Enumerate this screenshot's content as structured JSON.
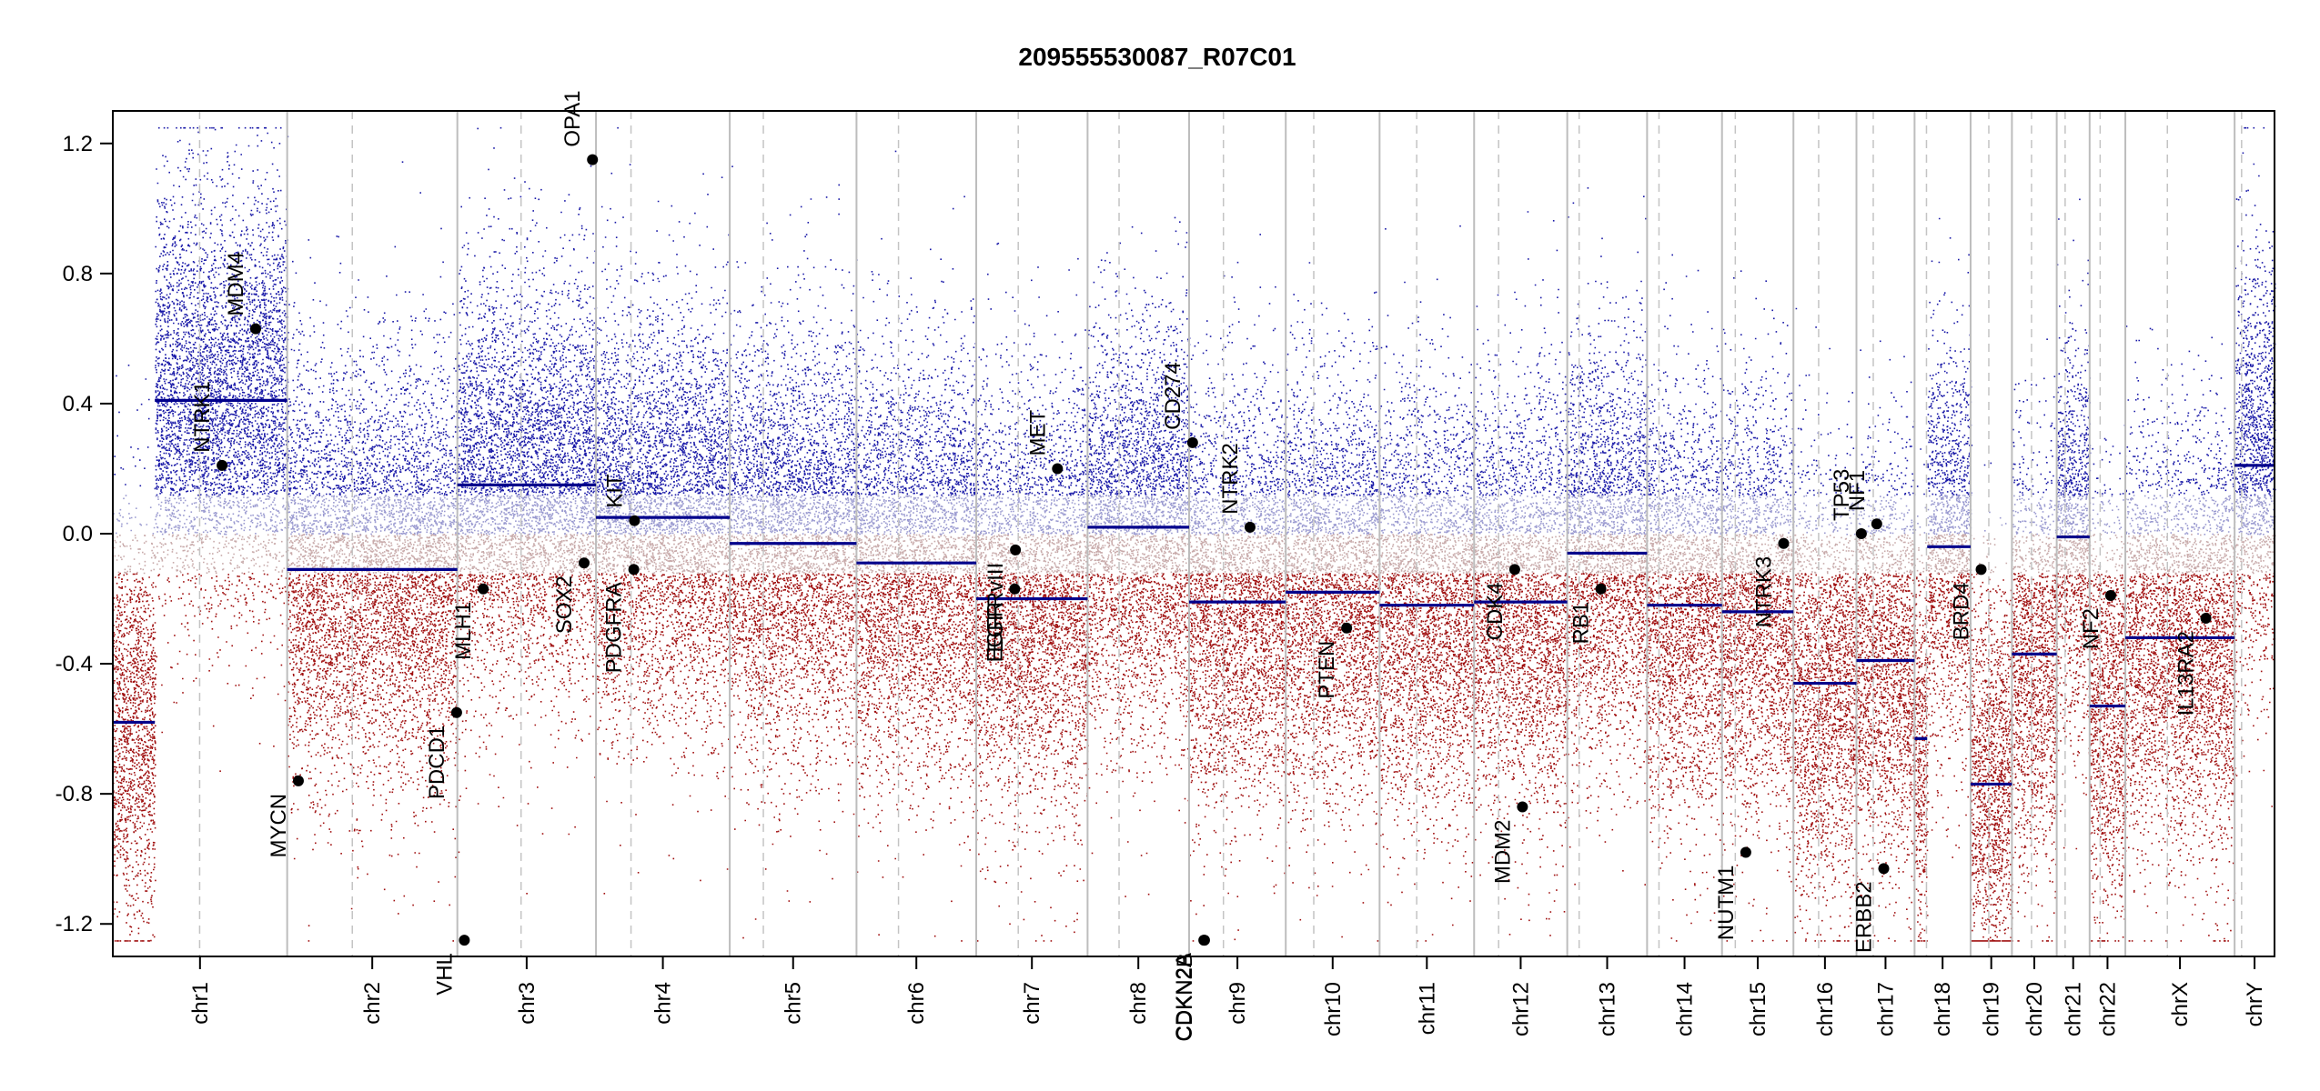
{
  "chart_data": {
    "type": "scatter",
    "title": "209555530087_R07C01",
    "xlabel": "",
    "ylabel": "",
    "ylim": [
      -1.3,
      1.3
    ],
    "yticks": [
      1.2,
      0.8,
      0.4,
      0.0,
      -0.4,
      -0.8,
      -1.2
    ],
    "ytick_labels": [
      "1.2",
      "0.8",
      "0.4",
      "0.0",
      "-0.4",
      "-0.8",
      "-1.2"
    ],
    "grid": false,
    "colors": {
      "gain": "#1a1aa8",
      "loss": "#a01010",
      "neutral": "#b8b8b8",
      "segment": "#00008b",
      "divider": "#bdbdbd"
    },
    "chromosomes": [
      {
        "name": "chr1",
        "size": 249,
        "centromere": 124
      },
      {
        "name": "chr2",
        "size": 243,
        "centromere": 93
      },
      {
        "name": "chr3",
        "size": 198,
        "centromere": 91
      },
      {
        "name": "chr4",
        "size": 191,
        "centromere": 50
      },
      {
        "name": "chr5",
        "size": 181,
        "centromere": 48
      },
      {
        "name": "chr6",
        "size": 171,
        "centromere": 60
      },
      {
        "name": "chr7",
        "size": 159,
        "centromere": 60
      },
      {
        "name": "chr8",
        "size": 145,
        "centromere": 45
      },
      {
        "name": "chr9",
        "size": 138,
        "centromere": 49
      },
      {
        "name": "chr10",
        "size": 134,
        "centromere": 40
      },
      {
        "name": "chr11",
        "size": 135,
        "centromere": 53
      },
      {
        "name": "chr12",
        "size": 133,
        "centromere": 35
      },
      {
        "name": "chr13",
        "size": 114,
        "centromere": 17
      },
      {
        "name": "chr14",
        "size": 107,
        "centromere": 17
      },
      {
        "name": "chr15",
        "size": 102,
        "centromere": 19
      },
      {
        "name": "chr16",
        "size": 90,
        "centromere": 36
      },
      {
        "name": "chr17",
        "size": 83,
        "centromere": 24
      },
      {
        "name": "chr18",
        "size": 80,
        "centromere": 17
      },
      {
        "name": "chr19",
        "size": 59,
        "centromere": 26
      },
      {
        "name": "chr20",
        "size": 64,
        "centromere": 28
      },
      {
        "name": "chr21",
        "size": 47,
        "centromere": 12
      },
      {
        "name": "chr22",
        "size": 51,
        "centromere": 15
      },
      {
        "name": "chrX",
        "size": 156,
        "centromere": 60
      },
      {
        "name": "chrY",
        "size": 57,
        "centromere": 10
      }
    ],
    "segments": [
      {
        "chr": "chr1",
        "start": 0,
        "end": 60,
        "value": -0.58
      },
      {
        "chr": "chr1",
        "start": 60,
        "end": 249,
        "value": 0.41
      },
      {
        "chr": "chr2",
        "start": 0,
        "end": 243,
        "value": -0.11
      },
      {
        "chr": "chr3",
        "start": 0,
        "end": 198,
        "value": 0.15
      },
      {
        "chr": "chr4",
        "start": 0,
        "end": 191,
        "value": 0.05
      },
      {
        "chr": "chr5",
        "start": 0,
        "end": 181,
        "value": -0.03
      },
      {
        "chr": "chr6",
        "start": 0,
        "end": 171,
        "value": -0.09
      },
      {
        "chr": "chr7",
        "start": 0,
        "end": 159,
        "value": -0.2
      },
      {
        "chr": "chr8",
        "start": 0,
        "end": 145,
        "value": 0.02
      },
      {
        "chr": "chr9",
        "start": 0,
        "end": 138,
        "value": -0.21
      },
      {
        "chr": "chr10",
        "start": 0,
        "end": 134,
        "value": -0.18
      },
      {
        "chr": "chr11",
        "start": 0,
        "end": 135,
        "value": -0.22
      },
      {
        "chr": "chr12",
        "start": 0,
        "end": 133,
        "value": -0.21
      },
      {
        "chr": "chr13",
        "start": 0,
        "end": 114,
        "value": -0.06
      },
      {
        "chr": "chr14",
        "start": 0,
        "end": 107,
        "value": -0.22
      },
      {
        "chr": "chr15",
        "start": 0,
        "end": 102,
        "value": -0.24
      },
      {
        "chr": "chr16",
        "start": 0,
        "end": 90,
        "value": -0.46
      },
      {
        "chr": "chr17",
        "start": 0,
        "end": 83,
        "value": -0.39
      },
      {
        "chr": "chr18",
        "start": 0,
        "end": 18,
        "value": -0.63
      },
      {
        "chr": "chr18",
        "start": 18,
        "end": 80,
        "value": -0.04
      },
      {
        "chr": "chr19",
        "start": 0,
        "end": 59,
        "value": -0.77
      },
      {
        "chr": "chr20",
        "start": 0,
        "end": 64,
        "value": -0.37
      },
      {
        "chr": "chr21",
        "start": 0,
        "end": 47,
        "value": -0.01
      },
      {
        "chr": "chr22",
        "start": 0,
        "end": 51,
        "value": -0.53
      },
      {
        "chr": "chrX",
        "start": 0,
        "end": 156,
        "value": -0.32
      },
      {
        "chr": "chrY",
        "start": 0,
        "end": 57,
        "value": 0.21
      }
    ],
    "genes": [
      {
        "name": "NTRK1",
        "chr": "chr1",
        "pos": 156,
        "value": 0.21
      },
      {
        "name": "MDM4",
        "chr": "chr1",
        "pos": 204,
        "value": 0.63
      },
      {
        "name": "MYCN",
        "chr": "chr2",
        "pos": 16,
        "value": -0.76
      },
      {
        "name": "PDCD1",
        "chr": "chr2",
        "pos": 242,
        "value": -0.55
      },
      {
        "name": "VHL",
        "chr": "chr3",
        "pos": 10,
        "value": -1.25
      },
      {
        "name": "MLH1",
        "chr": "chr3",
        "pos": 37,
        "value": -0.17
      },
      {
        "name": "SOX2",
        "chr": "chr3",
        "pos": 181,
        "value": -0.09
      },
      {
        "name": "OPA1",
        "chr": "chr3",
        "pos": 193,
        "value": 1.15
      },
      {
        "name": "KIT",
        "chr": "chr4",
        "pos": 55,
        "value": 0.04
      },
      {
        "name": "PDGFRA",
        "chr": "chr4",
        "pos": 54,
        "value": -0.11
      },
      {
        "name": "EGFR",
        "chr": "chr7",
        "pos": 55,
        "value": -0.17
      },
      {
        "name": "EGFRvIII",
        "chr": "chr7",
        "pos": 56,
        "value": -0.05
      },
      {
        "name": "MET",
        "chr": "chr7",
        "pos": 116,
        "value": 0.2
      },
      {
        "name": "CD274",
        "chr": "chr9",
        "pos": 5,
        "value": 0.28
      },
      {
        "name": "CDKN2A",
        "chr": "chr9",
        "pos": 21,
        "value": -1.25
      },
      {
        "name": "CDKN2B",
        "chr": "chr9",
        "pos": 22,
        "value": -1.25
      },
      {
        "name": "NTRK2",
        "chr": "chr9",
        "pos": 87,
        "value": 0.02
      },
      {
        "name": "PTEN",
        "chr": "chr10",
        "pos": 87,
        "value": -0.29
      },
      {
        "name": "CDK4",
        "chr": "chr12",
        "pos": 58,
        "value": -0.11
      },
      {
        "name": "MDM2",
        "chr": "chr12",
        "pos": 69,
        "value": -0.84
      },
      {
        "name": "RB1",
        "chr": "chr13",
        "pos": 48,
        "value": -0.17
      },
      {
        "name": "NUTM1",
        "chr": "chr15",
        "pos": 34,
        "value": -0.98
      },
      {
        "name": "NTRK3",
        "chr": "chr15",
        "pos": 88,
        "value": -0.03
      },
      {
        "name": "TP53",
        "chr": "chr17",
        "pos": 7,
        "value": 0.0
      },
      {
        "name": "NF1",
        "chr": "chr17",
        "pos": 29,
        "value": 0.03
      },
      {
        "name": "ERBB2",
        "chr": "chr17",
        "pos": 39,
        "value": -1.03
      },
      {
        "name": "BRD4",
        "chr": "chr19",
        "pos": 15,
        "value": -0.11
      },
      {
        "name": "NF2",
        "chr": "chr22",
        "pos": 30,
        "value": -0.19
      },
      {
        "name": "IL13RA2",
        "chr": "chrX",
        "pos": 115,
        "value": -0.26
      }
    ]
  }
}
